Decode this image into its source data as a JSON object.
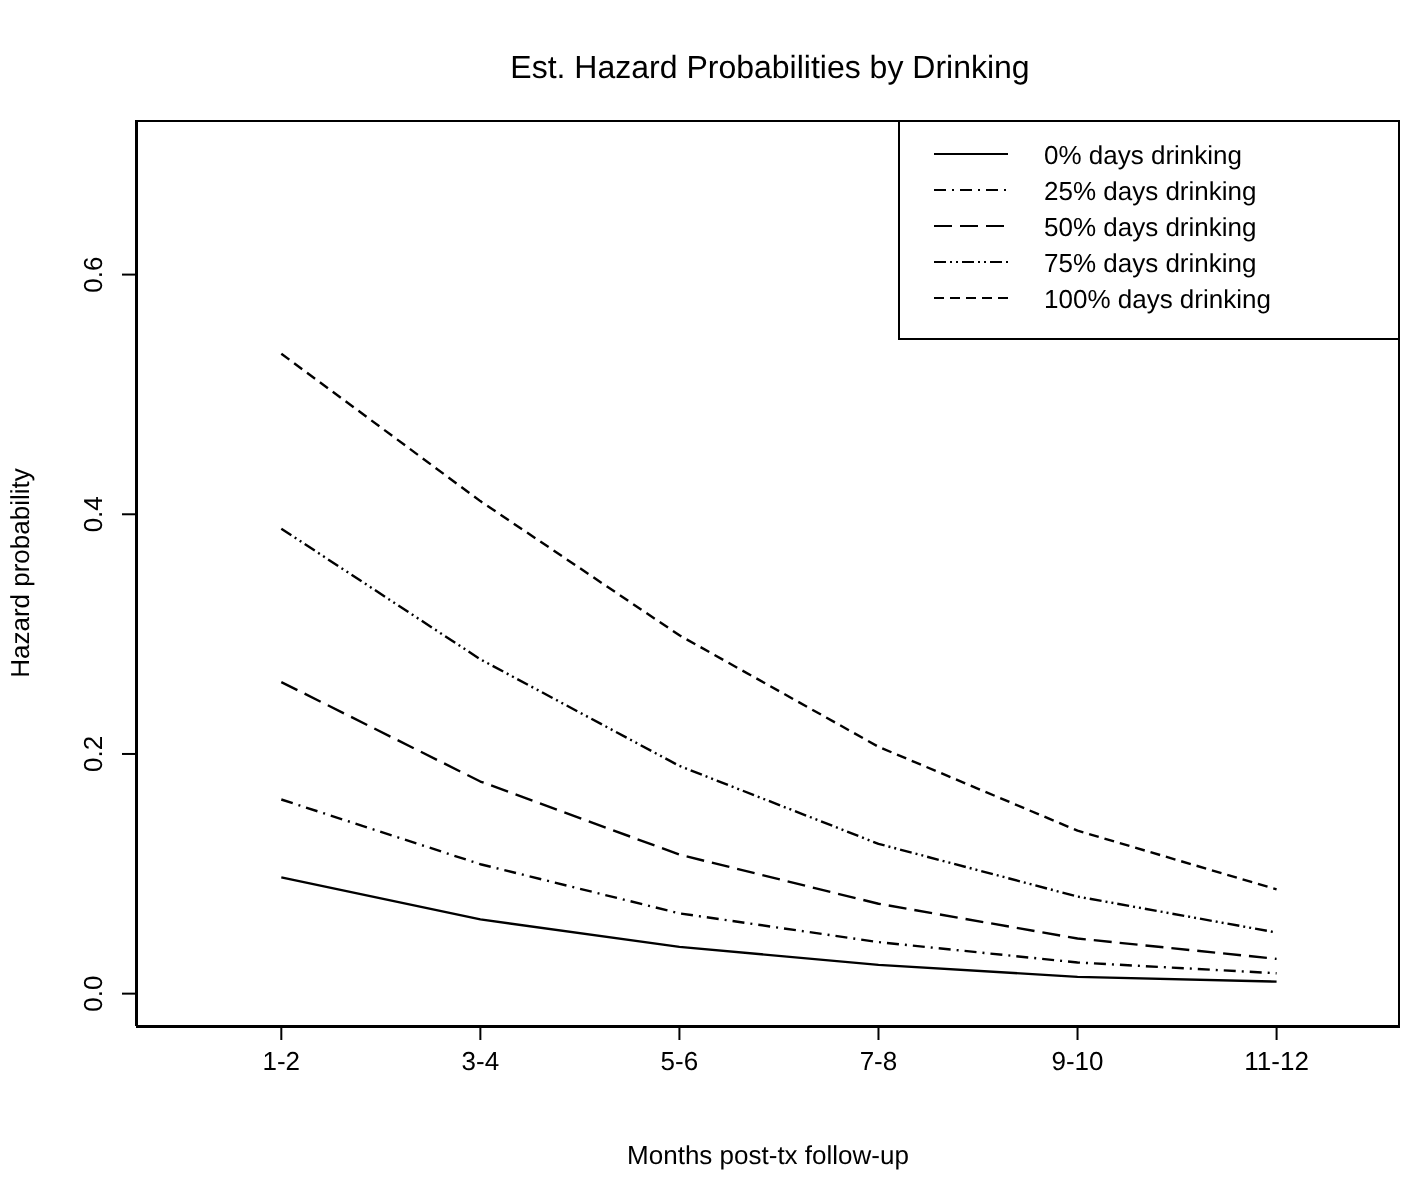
{
  "chart_data": {
    "type": "line",
    "title": "Est. Hazard Probabilities by Drinking",
    "xlabel": "Months post-tx follow-up",
    "ylabel": "Hazard probability",
    "categories": [
      "1-2",
      "3-4",
      "5-6",
      "7-8",
      "9-10",
      "11-12"
    ],
    "ylim": [
      -0.027,
      0.729
    ],
    "yticks": [
      {
        "value": 0,
        "label": "0.0"
      },
      {
        "value": 0.2,
        "label": "0.2"
      },
      {
        "value": 0.4,
        "label": "0.4"
      },
      {
        "value": 0.6,
        "label": "0.6"
      }
    ],
    "grid": false,
    "legend": "top right",
    "marker": "none",
    "series": [
      {
        "name": "0% days drinking",
        "color": "#000000",
        "line_style": "solid",
        "values": [
          0.097,
          0.062,
          0.039,
          0.024,
          0.014,
          0.01
        ]
      },
      {
        "name": "25% days drinking",
        "color": "#000000",
        "line_style": "dashdot",
        "values": [
          0.162,
          0.108,
          0.067,
          0.043,
          0.026,
          0.017
        ]
      },
      {
        "name": "50% days drinking",
        "color": "#000000",
        "line_style": "longdash",
        "values": [
          0.26,
          0.177,
          0.116,
          0.075,
          0.046,
          0.029
        ]
      },
      {
        "name": "75% days drinking",
        "color": "#000000",
        "line_style": "dashdotdot",
        "values": [
          0.388,
          0.279,
          0.19,
          0.125,
          0.081,
          0.051
        ]
      },
      {
        "name": "100% days drinking",
        "color": "#000000",
        "line_style": "dashed",
        "values": [
          0.534,
          0.411,
          0.299,
          0.206,
          0.136,
          0.087
        ]
      }
    ]
  }
}
